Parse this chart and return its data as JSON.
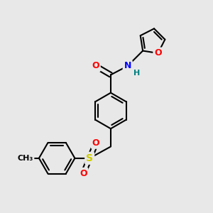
{
  "bg_color": "#e8e8e8",
  "bond_color": "#000000",
  "bond_width": 1.5,
  "atom_colors": {
    "O": "#ff0000",
    "N": "#0000ff",
    "S": "#cccc00",
    "H": "#008080",
    "C": "#000000"
  },
  "font_size": 9,
  "xlim": [
    0,
    10
  ],
  "ylim": [
    0,
    10
  ]
}
